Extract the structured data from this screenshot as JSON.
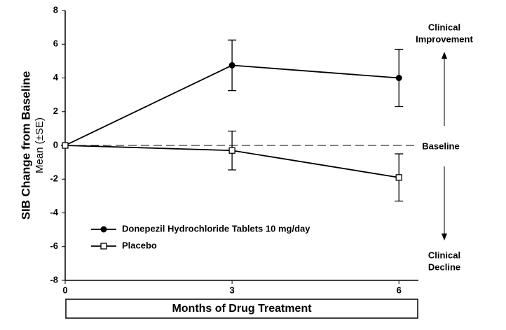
{
  "chart_data": {
    "type": "line",
    "ylabel": "SIB Change from Baseline",
    "ylabel_sub": "Mean (±SE)",
    "xlabel": "Months of Drug Treatment",
    "x": [
      0,
      3,
      6
    ],
    "series": [
      {
        "name": "Donepezil Hydrochloride Tablets 10 mg/day",
        "color": "#000000",
        "marker": "circle",
        "values": [
          0,
          4.75,
          4.0
        ],
        "errors": [
          0,
          1.5,
          1.7
        ]
      },
      {
        "name": "Placebo",
        "color": "#000000",
        "marker": "square",
        "values": [
          0,
          -0.3,
          -1.9
        ],
        "errors": [
          0,
          1.15,
          1.4
        ]
      }
    ],
    "xlim": [
      0,
      6.35
    ],
    "ylim": [
      -8,
      8
    ],
    "xticks": [
      0,
      3,
      6
    ],
    "yticks": [
      8,
      6,
      4,
      2,
      0,
      -2,
      -4,
      -6,
      -8
    ],
    "reference_line": 0,
    "annotations": {
      "improvement": [
        "Clinical",
        "Improvement"
      ],
      "baseline": "Baseline",
      "decline": [
        "Clinical",
        "Decline"
      ]
    },
    "legend": "lower left"
  }
}
